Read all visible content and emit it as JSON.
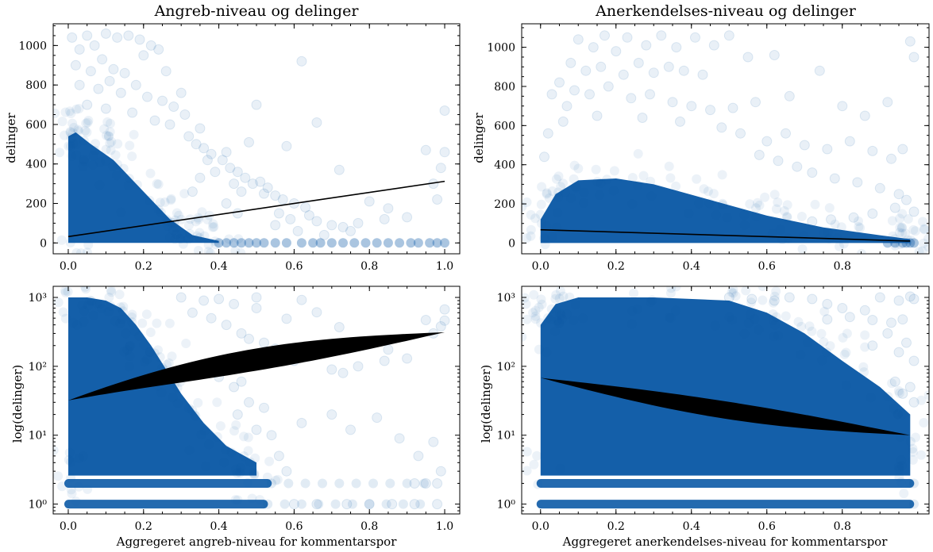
{
  "colors": {
    "points": "#0c5aa6",
    "fit": "#000000",
    "frame": "#000000"
  },
  "chart_data": [
    {
      "type": "scatter",
      "title": "Angreb-niveau og delinger",
      "xlabel": "",
      "ylabel": "delinger",
      "xscale": "linear",
      "yscale": "linear",
      "xlim": [
        -0.04,
        1.04
      ],
      "ylim": [
        -55,
        1110
      ],
      "xticks": [
        0.0,
        0.2,
        0.4,
        0.6,
        0.8,
        1.0
      ],
      "xtick_labels": [
        "0.0",
        "0.2",
        "0.4",
        "0.6",
        "0.8",
        "1.0"
      ],
      "yticks": [
        0,
        200,
        400,
        600,
        800,
        1000
      ],
      "ytick_labels": [
        "0",
        "200",
        "400",
        "600",
        "800",
        "1000"
      ],
      "point_alpha": 0.08,
      "dense_cloud": [
        [
          0.0,
          0
        ],
        [
          0.0,
          540
        ],
        [
          0.02,
          560
        ],
        [
          0.06,
          500
        ],
        [
          0.12,
          420
        ],
        [
          0.2,
          260
        ],
        [
          0.27,
          120
        ],
        [
          0.33,
          40
        ],
        [
          0.4,
          10
        ],
        [
          0.4,
          0
        ]
      ],
      "points": [
        [
          0.01,
          1040
        ],
        [
          0.03,
          980
        ],
        [
          0.05,
          1050
        ],
        [
          0.07,
          1000
        ],
        [
          0.1,
          1060
        ],
        [
          0.13,
          1040
        ],
        [
          0.16,
          1050
        ],
        [
          0.19,
          1030
        ],
        [
          0.22,
          1000
        ],
        [
          0.02,
          900
        ],
        [
          0.06,
          870
        ],
        [
          0.09,
          930
        ],
        [
          0.12,
          880
        ],
        [
          0.15,
          860
        ],
        [
          0.2,
          950
        ],
        [
          0.24,
          980
        ],
        [
          0.26,
          870
        ],
        [
          0.03,
          800
        ],
        [
          0.08,
          780
        ],
        [
          0.11,
          820
        ],
        [
          0.14,
          760
        ],
        [
          0.18,
          800
        ],
        [
          0.21,
          740
        ],
        [
          0.25,
          720
        ],
        [
          0.28,
          690
        ],
        [
          0.3,
          760
        ],
        [
          0.05,
          700
        ],
        [
          0.1,
          680
        ],
        [
          0.17,
          660
        ],
        [
          0.23,
          620
        ],
        [
          0.27,
          600
        ],
        [
          0.31,
          650
        ],
        [
          0.35,
          580
        ],
        [
          0.5,
          700
        ],
        [
          0.62,
          920
        ],
        [
          0.32,
          540
        ],
        [
          0.34,
          500
        ],
        [
          0.36,
          480
        ],
        [
          0.38,
          450
        ],
        [
          0.41,
          420
        ],
        [
          0.43,
          380
        ],
        [
          0.45,
          360
        ],
        [
          0.47,
          330
        ],
        [
          0.49,
          300
        ],
        [
          0.51,
          310
        ],
        [
          0.53,
          280
        ],
        [
          0.55,
          240
        ],
        [
          0.57,
          220
        ],
        [
          0.6,
          200
        ],
        [
          0.63,
          180
        ],
        [
          0.66,
          110
        ],
        [
          0.72,
          370
        ],
        [
          0.66,
          610
        ],
        [
          0.58,
          490
        ],
        [
          0.48,
          510
        ],
        [
          0.42,
          460
        ],
        [
          0.37,
          420
        ],
        [
          0.39,
          360
        ],
        [
          0.44,
          300
        ],
        [
          0.46,
          260
        ],
        [
          0.52,
          250
        ],
        [
          0.56,
          150
        ],
        [
          0.59,
          120
        ],
        [
          0.64,
          140
        ],
        [
          0.7,
          90
        ],
        [
          0.73,
          80
        ],
        [
          0.77,
          100
        ],
        [
          0.8,
          210
        ],
        [
          0.85,
          175
        ],
        [
          0.95,
          470
        ],
        [
          1.0,
          670
        ],
        [
          1.0,
          460
        ],
        [
          0.99,
          380
        ],
        [
          0.97,
          300
        ],
        [
          0.98,
          220
        ],
        [
          0.9,
          130
        ],
        [
          0.84,
          120
        ],
        [
          0.75,
          60
        ],
        [
          0.68,
          40
        ],
        [
          0.61,
          60
        ],
        [
          0.55,
          90
        ],
        [
          0.45,
          150
        ],
        [
          0.42,
          200
        ],
        [
          0.35,
          330
        ],
        [
          0.33,
          260
        ]
      ],
      "zero_points_x": [
        0.4,
        0.42,
        0.44,
        0.46,
        0.48,
        0.5,
        0.52,
        0.55,
        0.58,
        0.62,
        0.65,
        0.67,
        0.7,
        0.73,
        0.76,
        0.79,
        0.82,
        0.85,
        0.88,
        0.91,
        0.93,
        0.96,
        0.98,
        1.0
      ],
      "fit": {
        "x": [
          0.0,
          1.0
        ],
        "y": [
          32,
          312
        ]
      }
    },
    {
      "type": "scatter",
      "title": "Anerkendelses-niveau og delinger",
      "xlabel": "",
      "ylabel": "delinger",
      "xscale": "linear",
      "yscale": "linear",
      "xlim": [
        -0.05,
        1.03
      ],
      "ylim": [
        -55,
        1120
      ],
      "xticks": [
        0.0,
        0.2,
        0.4,
        0.6,
        0.8
      ],
      "xtick_labels": [
        "0.0",
        "0.2",
        "0.4",
        "0.6",
        "0.8"
      ],
      "yticks": [
        0,
        200,
        400,
        600,
        800,
        1000
      ],
      "ytick_labels": [
        "0",
        "200",
        "400",
        "600",
        "800",
        "1000"
      ],
      "point_alpha": 0.08,
      "dense_cloud": [
        [
          0.0,
          0
        ],
        [
          0.0,
          120
        ],
        [
          0.04,
          250
        ],
        [
          0.1,
          320
        ],
        [
          0.2,
          330
        ],
        [
          0.3,
          300
        ],
        [
          0.45,
          220
        ],
        [
          0.6,
          140
        ],
        [
          0.75,
          80
        ],
        [
          0.9,
          40
        ],
        [
          0.98,
          20
        ],
        [
          0.98,
          0
        ]
      ],
      "points": [
        [
          0.1,
          1040
        ],
        [
          0.14,
          1000
        ],
        [
          0.17,
          1060
        ],
        [
          0.2,
          980
        ],
        [
          0.23,
          1050
        ],
        [
          0.28,
          1010
        ],
        [
          0.32,
          1060
        ],
        [
          0.36,
          1000
        ],
        [
          0.41,
          1050
        ],
        [
          0.46,
          1010
        ],
        [
          0.5,
          1060
        ],
        [
          0.98,
          1030
        ],
        [
          0.99,
          950
        ],
        [
          0.08,
          920
        ],
        [
          0.12,
          880
        ],
        [
          0.16,
          900
        ],
        [
          0.22,
          860
        ],
        [
          0.26,
          920
        ],
        [
          0.3,
          870
        ],
        [
          0.34,
          900
        ],
        [
          0.38,
          880
        ],
        [
          0.43,
          860
        ],
        [
          0.55,
          950
        ],
        [
          0.62,
          960
        ],
        [
          0.05,
          820
        ],
        [
          0.09,
          780
        ],
        [
          0.13,
          760
        ],
        [
          0.18,
          800
        ],
        [
          0.24,
          740
        ],
        [
          0.29,
          760
        ],
        [
          0.35,
          720
        ],
        [
          0.4,
          700
        ],
        [
          0.45,
          680
        ],
        [
          0.51,
          690
        ],
        [
          0.57,
          720
        ],
        [
          0.66,
          750
        ],
        [
          0.74,
          880
        ],
        [
          0.8,
          700
        ],
        [
          0.86,
          650
        ],
        [
          0.92,
          720
        ],
        [
          0.07,
          700
        ],
        [
          0.15,
          650
        ],
        [
          0.27,
          640
        ],
        [
          0.37,
          620
        ],
        [
          0.48,
          590
        ],
        [
          0.53,
          560
        ],
        [
          0.6,
          520
        ],
        [
          0.65,
          560
        ],
        [
          0.7,
          500
        ],
        [
          0.76,
          480
        ],
        [
          0.82,
          520
        ],
        [
          0.88,
          470
        ],
        [
          0.96,
          480
        ],
        [
          0.93,
          430
        ],
        [
          0.58,
          450
        ],
        [
          0.63,
          420
        ],
        [
          0.68,
          390
        ],
        [
          0.72,
          360
        ],
        [
          0.78,
          330
        ],
        [
          0.84,
          310
        ],
        [
          0.9,
          280
        ],
        [
          0.95,
          250
        ],
        [
          0.97,
          220
        ],
        [
          0.94,
          180
        ],
        [
          0.99,
          160
        ],
        [
          0.88,
          150
        ],
        [
          0.83,
          130
        ],
        [
          0.77,
          120
        ],
        [
          0.72,
          110
        ],
        [
          0.02,
          560
        ],
        [
          0.01,
          440
        ],
        [
          0.03,
          760
        ],
        [
          0.06,
          620
        ]
      ],
      "zero_points_x": [
        0.92,
        0.94,
        0.96,
        0.97,
        0.98,
        0.99
      ],
      "fit": {
        "x": [
          0.0,
          0.98
        ],
        "y": [
          68,
          10
        ]
      }
    },
    {
      "type": "scatter",
      "title": "",
      "xlabel": "Aggregeret angreb-niveau for kommentarspor",
      "ylabel": "log(delinger)",
      "xscale": "linear",
      "yscale": "log",
      "xlim": [
        -0.04,
        1.04
      ],
      "ylim": [
        0.72,
        1450
      ],
      "xticks": [
        0.0,
        0.2,
        0.4,
        0.6,
        0.8,
        1.0
      ],
      "xtick_labels": [
        "0.0",
        "0.2",
        "0.4",
        "0.6",
        "0.8",
        "1.0"
      ],
      "yticks": [
        1,
        10,
        100,
        1000
      ],
      "ytick_labels": [
        "10⁰",
        "10¹",
        "10²",
        "10³"
      ],
      "point_alpha": 0.08,
      "dense_cloud": [
        [
          0.0,
          2.6
        ],
        [
          0.0,
          1000
        ],
        [
          0.05,
          1000
        ],
        [
          0.1,
          900
        ],
        [
          0.14,
          700
        ],
        [
          0.18,
          400
        ],
        [
          0.22,
          200
        ],
        [
          0.26,
          90
        ],
        [
          0.3,
          40
        ],
        [
          0.36,
          15
        ],
        [
          0.42,
          7
        ],
        [
          0.5,
          4
        ],
        [
          0.5,
          2.6
        ]
      ],
      "bands": [
        {
          "y": 2,
          "x": [
            0.0,
            0.53
          ]
        },
        {
          "y": 1,
          "x": [
            0.0,
            0.52
          ]
        }
      ],
      "points": [
        [
          0.3,
          1000
        ],
        [
          0.36,
          900
        ],
        [
          0.4,
          950
        ],
        [
          0.44,
          800
        ],
        [
          0.5,
          700
        ],
        [
          0.5,
          1000
        ],
        [
          0.33,
          600
        ],
        [
          0.38,
          500
        ],
        [
          0.42,
          400
        ],
        [
          0.46,
          300
        ],
        [
          0.48,
          250
        ],
        [
          0.52,
          220
        ],
        [
          0.55,
          180
        ],
        [
          0.58,
          160
        ],
        [
          0.62,
          920
        ],
        [
          0.66,
          610
        ],
        [
          0.72,
          370
        ],
        [
          0.58,
          490
        ],
        [
          0.6,
          120
        ],
        [
          0.64,
          140
        ],
        [
          0.7,
          90
        ],
        [
          0.73,
          80
        ],
        [
          0.77,
          100
        ],
        [
          0.8,
          210
        ],
        [
          0.85,
          175
        ],
        [
          0.95,
          470
        ],
        [
          1.0,
          670
        ],
        [
          1.0,
          460
        ],
        [
          0.99,
          380
        ],
        [
          0.97,
          300
        ],
        [
          0.9,
          130
        ],
        [
          0.84,
          120
        ],
        [
          0.4,
          70
        ],
        [
          0.44,
          50
        ],
        [
          0.48,
          30
        ],
        [
          0.52,
          25
        ],
        [
          0.46,
          60
        ],
        [
          0.62,
          15
        ],
        [
          0.7,
          20
        ],
        [
          0.75,
          12
        ],
        [
          0.82,
          18
        ],
        [
          0.88,
          9
        ],
        [
          0.93,
          5
        ],
        [
          0.97,
          8
        ],
        [
          0.99,
          3
        ],
        [
          0.92,
          2
        ],
        [
          0.95,
          2
        ],
        [
          0.98,
          2
        ],
        [
          0.86,
          1
        ],
        [
          0.92,
          1
        ],
        [
          0.98,
          1
        ],
        [
          0.6,
          1
        ],
        [
          0.66,
          1
        ],
        [
          0.74,
          1
        ],
        [
          0.8,
          1
        ],
        [
          0.56,
          5
        ],
        [
          0.58,
          3
        ],
        [
          0.54,
          10
        ],
        [
          0.5,
          12
        ],
        [
          0.45,
          20
        ]
      ],
      "fit": {
        "x": [
          0.0,
          1.0
        ],
        "y_upper": [
          32,
          312
        ],
        "y_lower": [
          32,
          312
        ],
        "y_mid": [
          160,
          312
        ]
      }
    },
    {
      "type": "scatter",
      "title": "",
      "xlabel": "Aggregeret anerkendelses-niveau for kommentarspor",
      "ylabel": "log(delinger)",
      "xscale": "linear",
      "yscale": "log",
      "xlim": [
        -0.05,
        1.03
      ],
      "ylim": [
        0.72,
        1450
      ],
      "xticks": [
        0.0,
        0.2,
        0.4,
        0.6,
        0.8
      ],
      "xtick_labels": [
        "0.0",
        "0.2",
        "0.4",
        "0.6",
        "0.8"
      ],
      "yticks": [
        1,
        10,
        100,
        1000
      ],
      "ytick_labels": [
        "10⁰",
        "10¹",
        "10²",
        "10³"
      ],
      "point_alpha": 0.08,
      "dense_cloud": [
        [
          0.0,
          2.6
        ],
        [
          0.0,
          400
        ],
        [
          0.04,
          800
        ],
        [
          0.1,
          1000
        ],
        [
          0.3,
          1000
        ],
        [
          0.5,
          900
        ],
        [
          0.6,
          600
        ],
        [
          0.7,
          300
        ],
        [
          0.8,
          120
        ],
        [
          0.9,
          50
        ],
        [
          0.98,
          20
        ],
        [
          0.98,
          2.6
        ]
      ],
      "bands": [
        {
          "y": 2,
          "x": [
            0.0,
            0.98
          ]
        },
        {
          "y": 1,
          "x": [
            0.0,
            0.98
          ]
        }
      ],
      "points": [
        [
          0.5,
          1000
        ],
        [
          0.56,
          950
        ],
        [
          0.62,
          900
        ],
        [
          0.66,
          1000
        ],
        [
          0.72,
          950
        ],
        [
          0.76,
          800
        ],
        [
          0.8,
          700
        ],
        [
          0.86,
          650
        ],
        [
          0.9,
          1000
        ],
        [
          0.95,
          900
        ],
        [
          0.98,
          1030
        ],
        [
          0.99,
          950
        ],
        [
          0.93,
          430
        ],
        [
          0.96,
          480
        ],
        [
          0.82,
          520
        ],
        [
          0.88,
          470
        ],
        [
          0.76,
          480
        ],
        [
          0.92,
          300
        ],
        [
          0.97,
          220
        ],
        [
          0.95,
          160
        ],
        [
          0.99,
          120
        ],
        [
          0.88,
          200
        ],
        [
          0.98,
          50
        ],
        [
          0.96,
          40
        ],
        [
          0.99,
          30
        ],
        [
          0.94,
          60
        ]
      ],
      "fit": {
        "x": [
          0.0,
          0.98
        ],
        "y_upper": [
          68,
          10
        ],
        "y_lower": [
          68,
          9
        ],
        "y_mid": [
          68,
          10
        ]
      }
    }
  ]
}
